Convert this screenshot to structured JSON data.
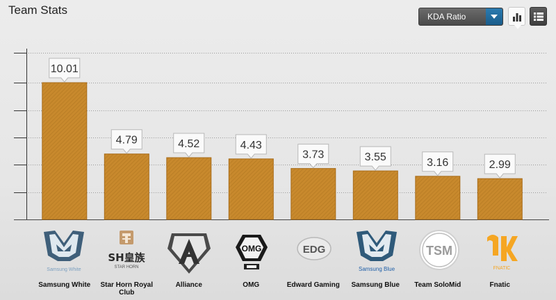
{
  "header": {
    "title": "Team Stats",
    "metric_select_value": "KDA Ratio"
  },
  "colors": {
    "bar": "#c8892d",
    "bar_stripe": "#b0731e",
    "label_box": "#fafafa",
    "gridline": "#9a9a9a",
    "accent_blue": "#1f6a9c"
  },
  "icons": {
    "dropdown_caret": "chevron-down-icon",
    "chart_view": "bar-chart-icon",
    "list_view": "list-icon"
  },
  "chart_data": {
    "type": "bar",
    "categories": [
      "Samsung White",
      "Star Horn Royal Club",
      "Alliance",
      "OMG",
      "Edward Gaming",
      "Samsung Blue",
      "Team SoloMid",
      "Fnatic"
    ],
    "values": [
      10.01,
      4.79,
      4.52,
      4.43,
      3.73,
      3.55,
      3.16,
      2.99
    ],
    "value_labels": [
      "10.01",
      "4.79",
      "4.52",
      "4.43",
      "3.73",
      "3.55",
      "3.16",
      "2.99"
    ],
    "ylim": [
      0,
      12
    ],
    "grid": true,
    "xlabel": "",
    "ylabel": ""
  },
  "logos": {
    "samsung_white_text": "Samsung White",
    "star_horn_text": "SH皇族",
    "star_horn_sub": "STAR HORN",
    "omg_text": "OMG",
    "edg_text": "EDG",
    "samsung_blue_text": "Samsung Blue",
    "tsm_text": "TSM",
    "fnatic_text": "FNATIC"
  }
}
